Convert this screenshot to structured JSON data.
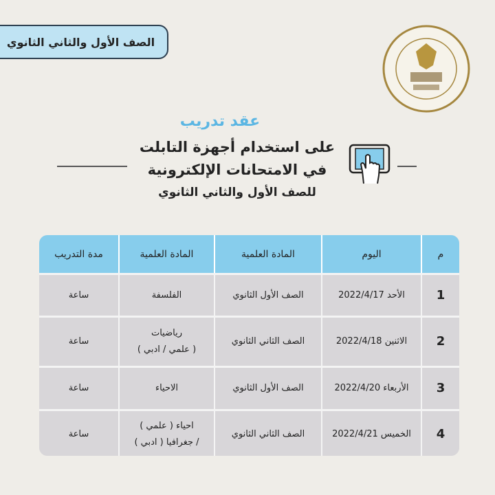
{
  "badge": "الصف الأول والثاني الثانوي",
  "logo": {
    "text": "MINISTRY OF EDUCATION AND TECHNICAL EDUCATION",
    "arabic": "وزارة التربية والتعليم والتعليم الفني"
  },
  "kicker": "عقد تدريب",
  "headline": [
    "على استخدام أجهزة التابلت",
    "في الامتحانات الإلكترونية"
  ],
  "subheadline": "للصف الأول والثاني الثانوي",
  "colors": {
    "accent": "#5bb6e3",
    "header": "#87cdec",
    "row": "#d8d6d9"
  },
  "table": {
    "headers": [
      "م",
      "اليوم",
      "المادة العلمية",
      "المادة العلمية",
      "مدة التدريب"
    ],
    "rows": [
      {
        "n": "1",
        "day": "الأحد 2022/4/17",
        "grade": "الصف الأول الثانوي",
        "subject": [
          "الفلسفة"
        ],
        "duration": "ساعة"
      },
      {
        "n": "2",
        "day": "الاثنين 2022/4/18",
        "grade": "الصف الثاني الثانوي",
        "subject": [
          "رياضيات",
          "( علمي / ادبي )"
        ],
        "duration": "ساعة"
      },
      {
        "n": "3",
        "day": "الأربعاء 2022/4/20",
        "grade": "الصف الأول الثانوي",
        "subject": [
          "الاحياء"
        ],
        "duration": "ساعة"
      },
      {
        "n": "4",
        "day": "الخميس 2022/4/21",
        "grade": "الصف الثاني الثانوي",
        "subject": [
          "احياء ( علمي )",
          "/ جغرافيا ( ادبي )"
        ],
        "duration": "ساعة"
      }
    ]
  }
}
